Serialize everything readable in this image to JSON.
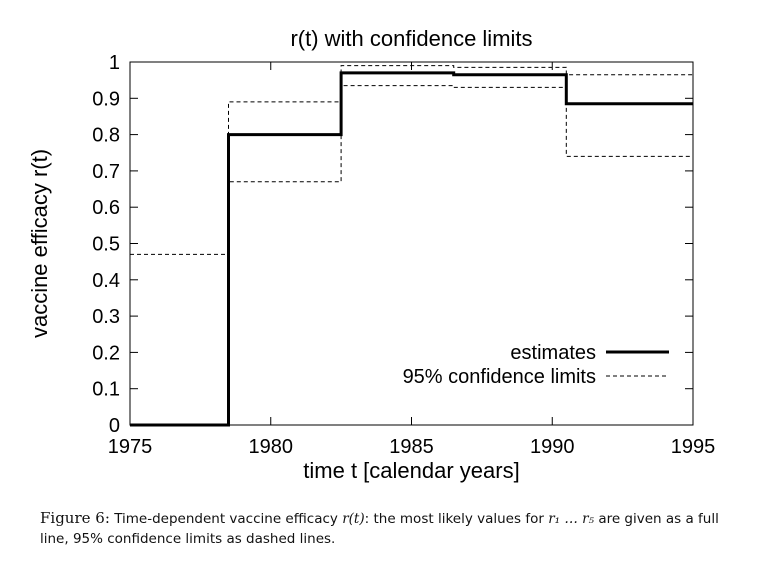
{
  "chart_data": {
    "type": "line",
    "title": "r(t) with confidence limits",
    "xlabel": "time t [calendar years]",
    "ylabel": "vaccine efficacy r(t)",
    "xlim": [
      1975,
      1995
    ],
    "ylim": [
      0,
      1
    ],
    "x_ticks": [
      "1975",
      "1980",
      "1985",
      "1990",
      "1995"
    ],
    "y_ticks": [
      "0",
      "0.1",
      "0.2",
      "0.3",
      "0.4",
      "0.5",
      "0.6",
      "0.7",
      "0.8",
      "0.9",
      "1"
    ],
    "grid": false,
    "legend_position": "bottom-right",
    "series": [
      {
        "name": "estimates",
        "style": "solid-thick",
        "x": [
          1975,
          1978.5,
          1978.5,
          1982.5,
          1982.5,
          1986.5,
          1986.5,
          1990.5,
          1990.5,
          1995
        ],
        "y": [
          0,
          0,
          0.8,
          0.8,
          0.97,
          0.97,
          0.965,
          0.965,
          0.885,
          0.885
        ]
      },
      {
        "name": "95% confidence limits",
        "style": "dashed",
        "x": [
          1975,
          1978.5,
          1978.5,
          1982.5,
          1982.5,
          1986.5,
          1986.5,
          1990.5,
          1990.5,
          1995
        ],
        "y": [
          0.47,
          0.47,
          0.89,
          0.89,
          0.99,
          0.99,
          0.985,
          0.985,
          0.965,
          0.965
        ]
      },
      {
        "name": "95% confidence limits",
        "style": "dashed",
        "x": [
          1975,
          1978.5,
          1978.5,
          1982.5,
          1982.5,
          1986.5,
          1986.5,
          1990.5,
          1990.5,
          1995
        ],
        "y": [
          0,
          0,
          0.67,
          0.67,
          0.935,
          0.935,
          0.93,
          0.93,
          0.74,
          0.74
        ]
      }
    ]
  },
  "caption": {
    "label": "Figure 6:",
    "text_part1": "Time-dependent vaccine efficacy",
    "math_rt": "r(t)",
    "text_part2": ": the most likely values for",
    "math_range": "r₁ … r₅",
    "text_part3": "are given as a full line, 95% confidence limits as dashed lines."
  }
}
